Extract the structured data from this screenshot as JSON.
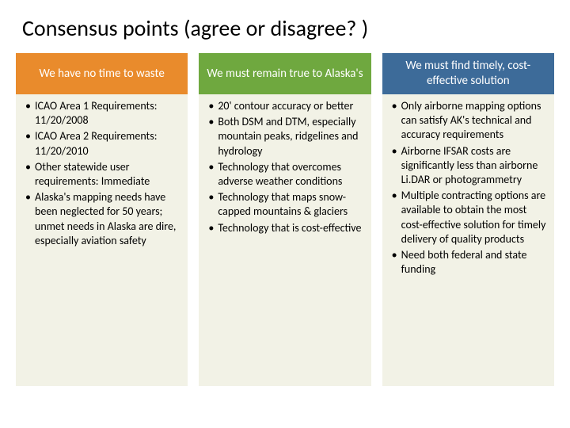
{
  "title": "Consensus points (agree or disagree? )",
  "columns": [
    {
      "header": "We have no time to waste",
      "header_bg": "#e98b2c",
      "body_bg": "#f2f2e6",
      "bullets": [
        "ICAO Area 1 Requirements: 11/20/2008",
        "ICAO Area 2 Requirements: 11/20/2010",
        "Other statewide user requirements: Immediate",
        "Alaska's mapping needs have been neglected for 50 years; unmet needs in Alaska are dire, especially aviation safety"
      ]
    },
    {
      "header": "We must remain true to Alaska's",
      "header_bg": "#6fa83f",
      "body_bg": "#f2f2e6",
      "bullets": [
        "20' contour accuracy or better",
        "Both DSM and DTM, especially mountain peaks, ridgelines and hydrology",
        "Technology that overcomes adverse weather conditions",
        "Technology that maps snow-capped mountains & glaciers",
        "Technology that is cost-effective"
      ]
    },
    {
      "header": "We must find timely, cost-effective solution",
      "header_bg": "#3d6b99",
      "body_bg": "#f2f2e6",
      "bullets": [
        "Only airborne mapping options can satisfy AK's technical and accuracy requirements",
        "Airborne IFSAR costs are significantly less than airborne Li.DAR or photogrammetry",
        "Multiple contracting options are available to obtain the most cost-effective solution for timely delivery of quality products",
        "Need both federal and state funding"
      ]
    }
  ]
}
